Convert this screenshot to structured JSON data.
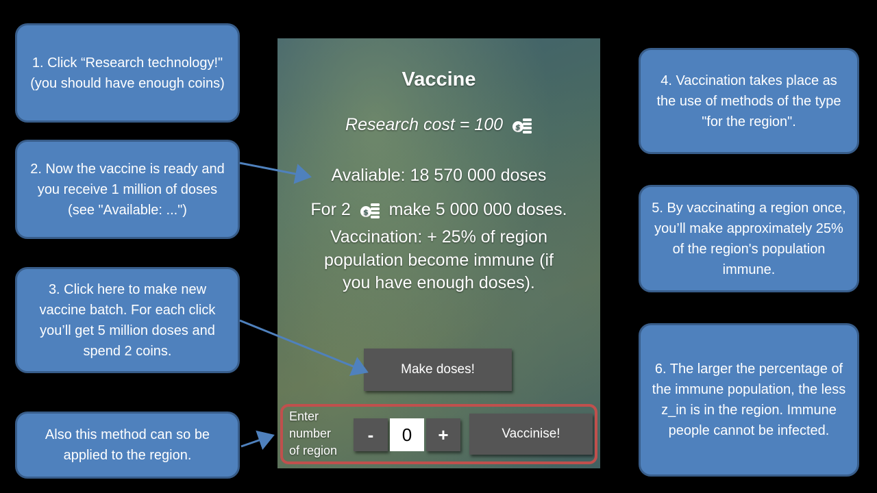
{
  "callouts": {
    "c1": "1. Click “Research technology!\" (you should have enough coins)",
    "c2": "2. Now the vaccine is ready and you receive 1 million of doses (see \"Available: ...\")",
    "c3": "3. Click here to make new vaccine batch. For each click you’ll get 5 million doses and spend 2 coins.",
    "c_also": "Also this method can so be applied to the region.",
    "c4": "4. Vaccination takes place as the use of methods of the type \"for the region\".",
    "c5": "5. By vaccinating a region once, you’ll make approximately 25% of the region's population immune.",
    "c6": "6. The larger the percentage of the immune population, the less z_in is in the region. Immune people cannot be infected."
  },
  "panel": {
    "title": "Vaccine",
    "research_cost": "Research cost = 100",
    "available": "Avaliable: 18 570 000 doses",
    "make_prefix": "For 2",
    "make_suffix": "make 5 000 000 doses.",
    "vacc_line1": "Vaccination: + 25% of region",
    "vacc_line2": "population become immune (if",
    "vacc_line3": "you have enough doses).",
    "make_doses_button": "Make doses!",
    "region_label_1": "Enter",
    "region_label_2": "number",
    "region_label_3": "of region",
    "minus": "-",
    "plus": "+",
    "region_value": "0",
    "vaccinise_button": "Vaccinise!"
  },
  "icons": {
    "coin": "coin-stack-icon"
  },
  "colors": {
    "callout_fill": "#4f81bd",
    "callout_border": "#385d8a",
    "highlight": "#c0504d"
  }
}
